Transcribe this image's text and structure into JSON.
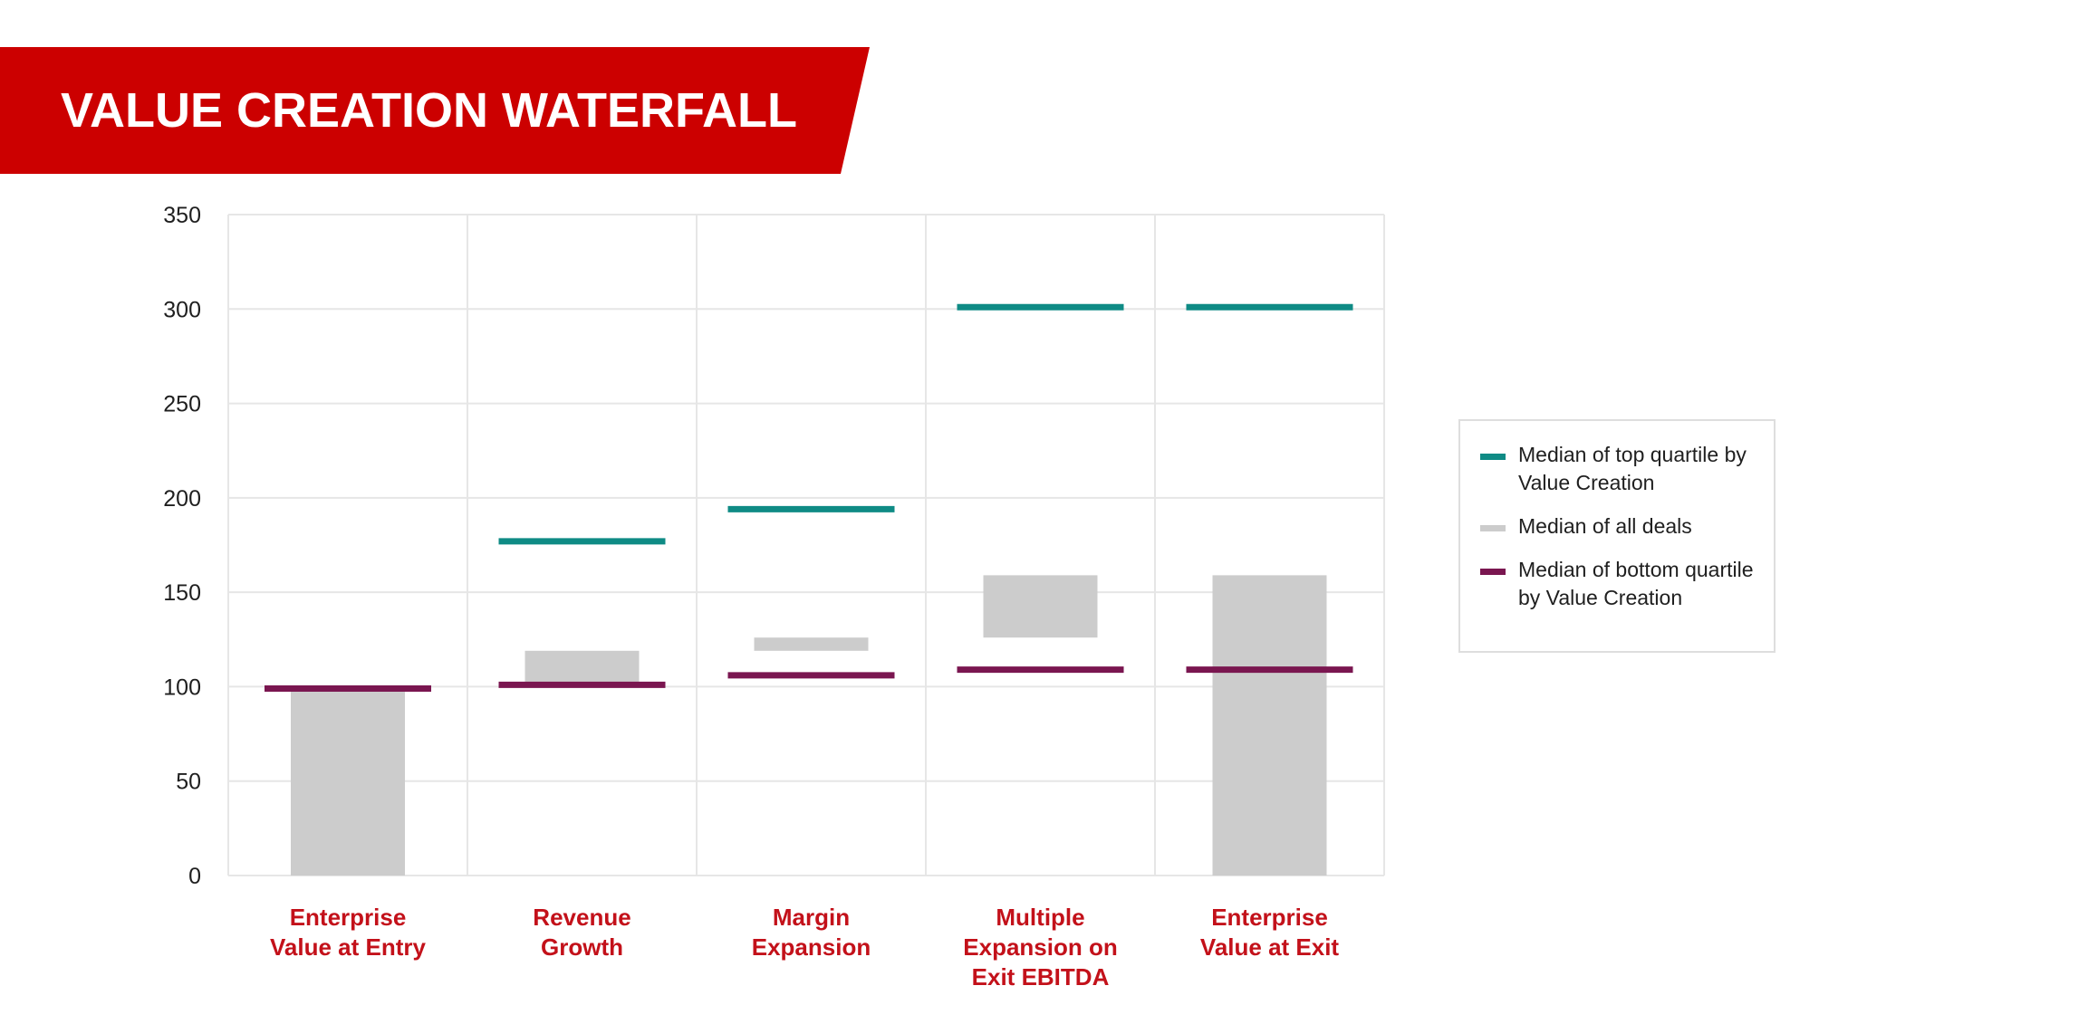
{
  "header": {
    "title": "VALUE CREATION WATERFALL"
  },
  "colors": {
    "banner": "#cc0000",
    "top_quartile": "#0f8b85",
    "all_deals": "#cccccc",
    "bottom_quartile": "#7a1650",
    "category_label": "#c3111a",
    "grid": "#e6e6e6"
  },
  "chart_data": {
    "type": "bar",
    "title": "VALUE CREATION WATERFALL",
    "categories": [
      "Enterprise Value at Entry",
      "Revenue Growth",
      "Margin Expansion",
      "Multiple Expansion on Exit EBITDA",
      "Enterprise Value at Exit"
    ],
    "category_lines": [
      [
        "Enterprise",
        "Value at Entry"
      ],
      [
        "Revenue",
        "Growth"
      ],
      [
        "Margin",
        "Expansion"
      ],
      [
        "Multiple",
        "Expansion on",
        "Exit EBITDA"
      ],
      [
        "Enterprise",
        "Value at Exit"
      ]
    ],
    "ylim": [
      0,
      350
    ],
    "yticks": [
      0,
      50,
      100,
      150,
      200,
      250,
      300,
      350
    ],
    "grid": true,
    "legend_position": "right",
    "series": [
      {
        "name": "Median of top quartile by Value Creation",
        "kind": "line",
        "values": [
          null,
          177,
          194,
          301,
          301
        ]
      },
      {
        "name": "Median of all deals",
        "kind": "floating-bar",
        "values": [
          [
            0,
            99
          ],
          [
            100,
            119
          ],
          [
            119,
            126
          ],
          [
            126,
            159
          ],
          [
            0,
            159
          ]
        ]
      },
      {
        "name": "Median of bottom quartile by Value Creation",
        "kind": "line",
        "values": [
          99,
          101,
          106,
          109,
          109
        ]
      }
    ]
  },
  "legend": {
    "items": [
      {
        "label": "Median of top quartile by Value Creation"
      },
      {
        "label": "Median of all deals"
      },
      {
        "label": "Median of bottom quartile by Value Creation"
      }
    ]
  }
}
